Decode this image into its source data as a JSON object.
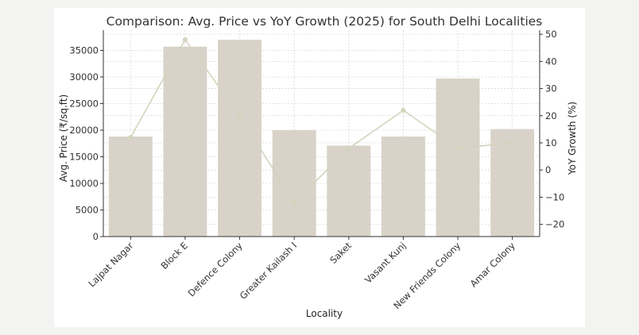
{
  "chart_data": {
    "type": "bar",
    "title": "Comparison: Avg. Price vs YoY Growth (2025) for South Delhi Localities",
    "xlabel": "Locality",
    "ylabel": "Avg. Price (₹/sq.ft)",
    "y2label": "YoY Growth (%)",
    "categories": [
      "Lajpat Nagar",
      "Block E",
      "Defence Colony",
      "Greater Kailash I",
      "Saket",
      "Vasant Kunj",
      "New Friends Colony",
      "Amar Colony"
    ],
    "series": [
      {
        "name": "Avg. Price (₹/sq.ft)",
        "type": "bar",
        "axis": "left",
        "values": [
          18800,
          35700,
          37000,
          20000,
          17100,
          18800,
          29700,
          20200
        ]
      },
      {
        "name": "YoY Growth (%)",
        "type": "line",
        "axis": "right",
        "values": [
          12,
          48,
          20,
          -12,
          8,
          22,
          8,
          10
        ]
      }
    ],
    "ylim": [
      0,
      38800
    ],
    "y2lim": [
      -24.5,
      51.5
    ],
    "yticks": [
      "0",
      "5000",
      "10000",
      "15000",
      "20000",
      "25000",
      "30000",
      "35000"
    ],
    "y2ticks": [
      "−20",
      "−10",
      "0",
      "10",
      "20",
      "30",
      "40",
      "50"
    ],
    "grid": true,
    "colors": {
      "bar": "#d8d2c8",
      "line": "#d3d4bd",
      "grid": "#d8d8d8",
      "axis": "#333333"
    }
  }
}
